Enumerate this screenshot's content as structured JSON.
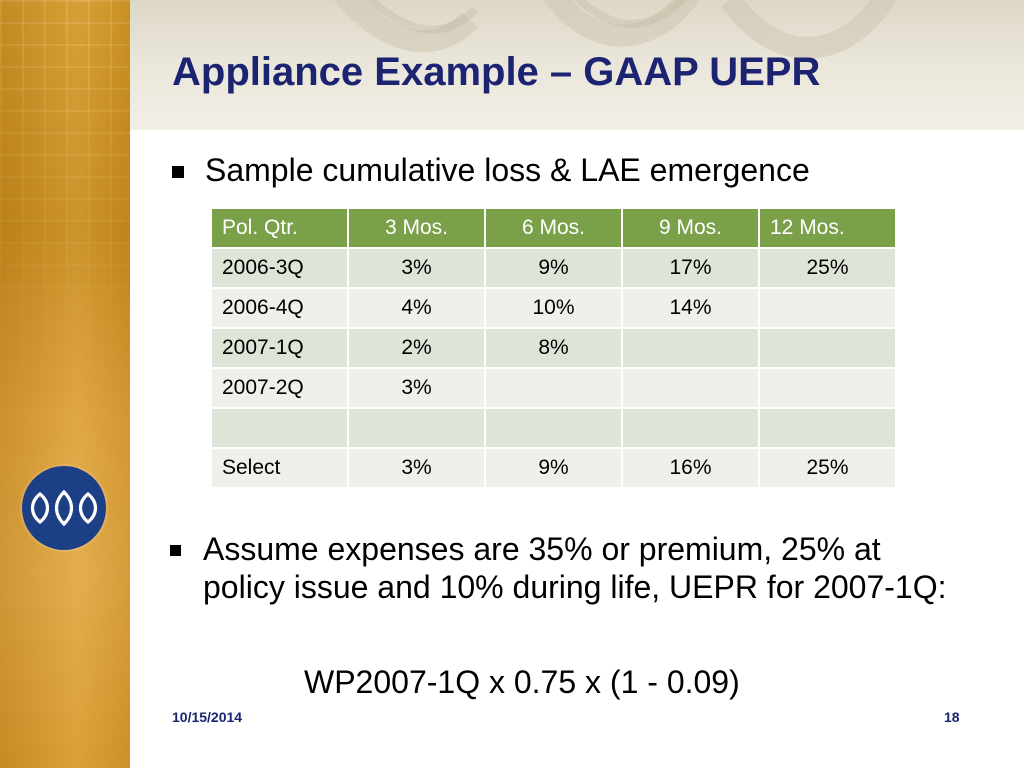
{
  "slide": {
    "title": "Appliance Example – GAAP UEPR",
    "bullet1": "Sample cumulative loss & LAE emergence",
    "bullet2": "Assume expenses are 35% or premium, 25% at policy issue and 10% during life, UEPR for 2007-1Q:",
    "formula": "WP2007-1Q x 0.75 x (1 - 0.09)",
    "date": "10/15/2014",
    "page_number": "18"
  },
  "table": {
    "headers": [
      "Pol. Qtr.",
      "3 Mos.",
      "6 Mos.",
      "9 Mos.",
      "12 Mos."
    ],
    "rows": [
      [
        "2006-3Q",
        "3%",
        "9%",
        "17%",
        "25%"
      ],
      [
        "2006-4Q",
        "4%",
        "10%",
        "14%",
        ""
      ],
      [
        "2007-1Q",
        "2%",
        "8%",
        "",
        ""
      ],
      [
        "2007-2Q",
        "3%",
        "",
        "",
        ""
      ],
      [
        "",
        "",
        "",
        "",
        ""
      ],
      [
        "Select",
        "3%",
        "9%",
        "16%",
        "25%"
      ]
    ]
  },
  "colors": {
    "title": "#1c2471",
    "header_bg": "#7aa04a",
    "row_odd": "#dfe4d8",
    "row_even": "#eef0ea",
    "left_strip": "#d49a2a",
    "logo_bg": "#1c3f86"
  }
}
